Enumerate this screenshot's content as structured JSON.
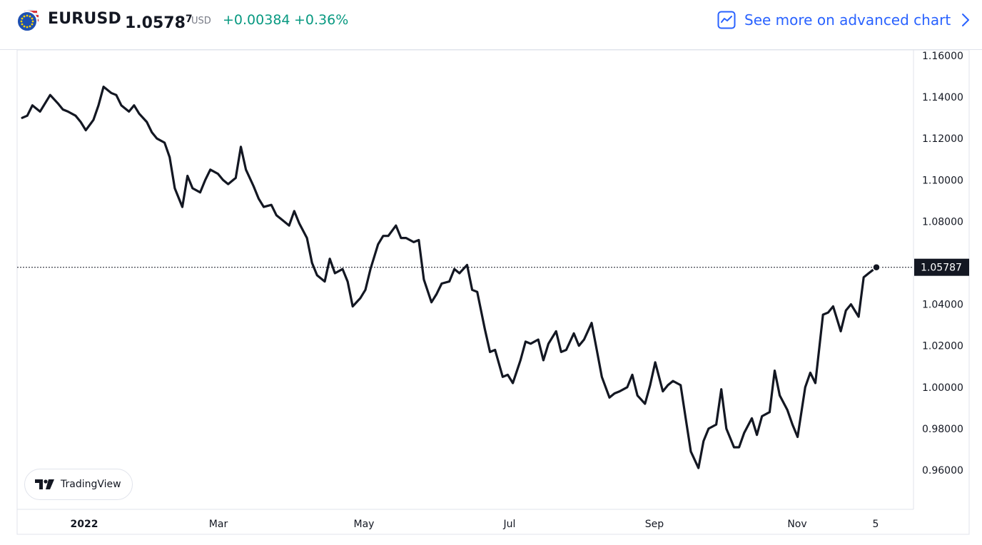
{
  "header": {
    "symbol": "EURUSD",
    "price_main": "1.0578",
    "price_sup": "7",
    "currency": "USD",
    "change": "+0.00384",
    "change_percent": "+0.36%",
    "advanced_chart_label": "See more on advanced chart",
    "change_color": "#089981",
    "link_color": "#2962ff"
  },
  "branding": {
    "label": "TradingView"
  },
  "chart_data": {
    "type": "line",
    "title": "",
    "xlabel": "",
    "ylabel": "",
    "ylim": [
      0.95,
      1.165
    ],
    "y_ticks": [
      0.96,
      0.98,
      1.0,
      1.02,
      1.04,
      1.06,
      1.08,
      1.1,
      1.12,
      1.14,
      1.16
    ],
    "y_tick_labels": [
      "0.96000",
      "0.98000",
      "1.00000",
      "1.02000",
      "1.04000",
      "1.06000",
      "1.08000",
      "1.10000",
      "1.12000",
      "1.14000",
      "1.16000"
    ],
    "x_range": [
      "2022-01-01",
      "2022-11-30"
    ],
    "x_ticks": [
      {
        "date": "2022-01-15",
        "label": "2022"
      },
      {
        "date": "2022-03-15",
        "label": "Mar"
      },
      {
        "date": "2022-05-15",
        "label": "May"
      },
      {
        "date": "2022-07-15",
        "label": "Jul"
      },
      {
        "date": "2022-09-15",
        "label": "Sep"
      },
      {
        "date": "2022-11-15",
        "label": "Nov"
      },
      {
        "date": "2022-12-05",
        "label": "5"
      }
    ],
    "last_value": 1.05787,
    "last_value_label": "1.05787",
    "line_color": "#131722",
    "grid": false,
    "series": [
      {
        "values": [
          {
            "x": "2022-01-03",
            "y": 1.13
          },
          {
            "x": "2022-01-05",
            "y": 1.131
          },
          {
            "x": "2022-01-07",
            "y": 1.136
          },
          {
            "x": "2022-01-10",
            "y": 1.133
          },
          {
            "x": "2022-01-12",
            "y": 1.137
          },
          {
            "x": "2022-01-14",
            "y": 1.141
          },
          {
            "x": "2022-01-17",
            "y": 1.137
          },
          {
            "x": "2022-01-19",
            "y": 1.134
          },
          {
            "x": "2022-01-21",
            "y": 1.133
          },
          {
            "x": "2022-01-24",
            "y": 1.131
          },
          {
            "x": "2022-01-26",
            "y": 1.128
          },
          {
            "x": "2022-01-28",
            "y": 1.124
          },
          {
            "x": "2022-01-31",
            "y": 1.129
          },
          {
            "x": "2022-02-02",
            "y": 1.136
          },
          {
            "x": "2022-02-04",
            "y": 1.145
          },
          {
            "x": "2022-02-07",
            "y": 1.142
          },
          {
            "x": "2022-02-09",
            "y": 1.141
          },
          {
            "x": "2022-02-11",
            "y": 1.136
          },
          {
            "x": "2022-02-14",
            "y": 1.133
          },
          {
            "x": "2022-02-16",
            "y": 1.136
          },
          {
            "x": "2022-02-18",
            "y": 1.132
          },
          {
            "x": "2022-02-21",
            "y": 1.128
          },
          {
            "x": "2022-02-23",
            "y": 1.123
          },
          {
            "x": "2022-02-25",
            "y": 1.12
          },
          {
            "x": "2022-02-28",
            "y": 1.118
          },
          {
            "x": "2022-03-02",
            "y": 1.111
          },
          {
            "x": "2022-03-04",
            "y": 1.096
          },
          {
            "x": "2022-03-07",
            "y": 1.087
          },
          {
            "x": "2022-03-09",
            "y": 1.102
          },
          {
            "x": "2022-03-11",
            "y": 1.096
          },
          {
            "x": "2022-03-14",
            "y": 1.094
          },
          {
            "x": "2022-03-16",
            "y": 1.1
          },
          {
            "x": "2022-03-18",
            "y": 1.105
          },
          {
            "x": "2022-03-21",
            "y": 1.103
          },
          {
            "x": "2022-03-23",
            "y": 1.1
          },
          {
            "x": "2022-03-25",
            "y": 1.098
          },
          {
            "x": "2022-03-28",
            "y": 1.101
          },
          {
            "x": "2022-03-30",
            "y": 1.116
          },
          {
            "x": "2022-04-01",
            "y": 1.105
          },
          {
            "x": "2022-04-04",
            "y": 1.097
          },
          {
            "x": "2022-04-06",
            "y": 1.091
          },
          {
            "x": "2022-04-08",
            "y": 1.087
          },
          {
            "x": "2022-04-11",
            "y": 1.088
          },
          {
            "x": "2022-04-13",
            "y": 1.083
          },
          {
            "x": "2022-04-15",
            "y": 1.081
          },
          {
            "x": "2022-04-18",
            "y": 1.078
          },
          {
            "x": "2022-04-20",
            "y": 1.085
          },
          {
            "x": "2022-04-22",
            "y": 1.079
          },
          {
            "x": "2022-04-25",
            "y": 1.072
          },
          {
            "x": "2022-04-27",
            "y": 1.06
          },
          {
            "x": "2022-04-29",
            "y": 1.054
          },
          {
            "x": "2022-05-02",
            "y": 1.051
          },
          {
            "x": "2022-05-04",
            "y": 1.062
          },
          {
            "x": "2022-05-06",
            "y": 1.055
          },
          {
            "x": "2022-05-09",
            "y": 1.057
          },
          {
            "x": "2022-05-11",
            "y": 1.051
          },
          {
            "x": "2022-05-13",
            "y": 1.039
          },
          {
            "x": "2022-05-16",
            "y": 1.043
          },
          {
            "x": "2022-05-18",
            "y": 1.047
          },
          {
            "x": "2022-05-20",
            "y": 1.057
          },
          {
            "x": "2022-05-23",
            "y": 1.069
          },
          {
            "x": "2022-05-25",
            "y": 1.073
          },
          {
            "x": "2022-05-27",
            "y": 1.073
          },
          {
            "x": "2022-05-30",
            "y": 1.078
          },
          {
            "x": "2022-06-01",
            "y": 1.072
          },
          {
            "x": "2022-06-03",
            "y": 1.072
          },
          {
            "x": "2022-06-06",
            "y": 1.07
          },
          {
            "x": "2022-06-08",
            "y": 1.071
          },
          {
            "x": "2022-06-10",
            "y": 1.052
          },
          {
            "x": "2022-06-13",
            "y": 1.041
          },
          {
            "x": "2022-06-15",
            "y": 1.045
          },
          {
            "x": "2022-06-17",
            "y": 1.05
          },
          {
            "x": "2022-06-20",
            "y": 1.051
          },
          {
            "x": "2022-06-22",
            "y": 1.057
          },
          {
            "x": "2022-06-24",
            "y": 1.055
          },
          {
            "x": "2022-06-27",
            "y": 1.059
          },
          {
            "x": "2022-06-29",
            "y": 1.047
          },
          {
            "x": "2022-07-01",
            "y": 1.046
          },
          {
            "x": "2022-07-04",
            "y": 1.028
          },
          {
            "x": "2022-07-06",
            "y": 1.017
          },
          {
            "x": "2022-07-08",
            "y": 1.018
          },
          {
            "x": "2022-07-11",
            "y": 1.005
          },
          {
            "x": "2022-07-13",
            "y": 1.006
          },
          {
            "x": "2022-07-15",
            "y": 1.002
          },
          {
            "x": "2022-07-18",
            "y": 1.013
          },
          {
            "x": "2022-07-20",
            "y": 1.022
          },
          {
            "x": "2022-07-22",
            "y": 1.021
          },
          {
            "x": "2022-07-25",
            "y": 1.023
          },
          {
            "x": "2022-07-27",
            "y": 1.013
          },
          {
            "x": "2022-07-29",
            "y": 1.021
          },
          {
            "x": "2022-08-01",
            "y": 1.027
          },
          {
            "x": "2022-08-03",
            "y": 1.017
          },
          {
            "x": "2022-08-05",
            "y": 1.018
          },
          {
            "x": "2022-08-08",
            "y": 1.026
          },
          {
            "x": "2022-08-10",
            "y": 1.02
          },
          {
            "x": "2022-08-12",
            "y": 1.023
          },
          {
            "x": "2022-08-15",
            "y": 1.031
          },
          {
            "x": "2022-08-17",
            "y": 1.018
          },
          {
            "x": "2022-08-19",
            "y": 1.005
          },
          {
            "x": "2022-08-22",
            "y": 0.995
          },
          {
            "x": "2022-08-24",
            "y": 0.997
          },
          {
            "x": "2022-08-26",
            "y": 0.998
          },
          {
            "x": "2022-08-29",
            "y": 1.0
          },
          {
            "x": "2022-08-31",
            "y": 1.006
          },
          {
            "x": "2022-09-02",
            "y": 0.996
          },
          {
            "x": "2022-09-05",
            "y": 0.992
          },
          {
            "x": "2022-09-07",
            "y": 1.001
          },
          {
            "x": "2022-09-09",
            "y": 1.012
          },
          {
            "x": "2022-09-12",
            "y": 0.998
          },
          {
            "x": "2022-09-14",
            "y": 1.001
          },
          {
            "x": "2022-09-16",
            "y": 1.003
          },
          {
            "x": "2022-09-19",
            "y": 1.001
          },
          {
            "x": "2022-09-21",
            "y": 0.985
          },
          {
            "x": "2022-09-23",
            "y": 0.969
          },
          {
            "x": "2022-09-26",
            "y": 0.961
          },
          {
            "x": "2022-09-28",
            "y": 0.974
          },
          {
            "x": "2022-09-30",
            "y": 0.98
          },
          {
            "x": "2022-10-03",
            "y": 0.982
          },
          {
            "x": "2022-10-05",
            "y": 0.999
          },
          {
            "x": "2022-10-07",
            "y": 0.98
          },
          {
            "x": "2022-10-10",
            "y": 0.971
          },
          {
            "x": "2022-10-12",
            "y": 0.971
          },
          {
            "x": "2022-10-14",
            "y": 0.978
          },
          {
            "x": "2022-10-17",
            "y": 0.985
          },
          {
            "x": "2022-10-19",
            "y": 0.977
          },
          {
            "x": "2022-10-21",
            "y": 0.986
          },
          {
            "x": "2022-10-24",
            "y": 0.988
          },
          {
            "x": "2022-10-26",
            "y": 1.008
          },
          {
            "x": "2022-10-28",
            "y": 0.996
          },
          {
            "x": "2022-10-31",
            "y": 0.989
          },
          {
            "x": "2022-11-02",
            "y": 0.982
          },
          {
            "x": "2022-11-04",
            "y": 0.976
          },
          {
            "x": "2022-11-07",
            "y": 1.0
          },
          {
            "x": "2022-11-09",
            "y": 1.007
          },
          {
            "x": "2022-11-11",
            "y": 1.002
          },
          {
            "x": "2022-11-14",
            "y": 1.035
          },
          {
            "x": "2022-11-16",
            "y": 1.036
          },
          {
            "x": "2022-11-18",
            "y": 1.039
          },
          {
            "x": "2022-11-21",
            "y": 1.027
          },
          {
            "x": "2022-11-23",
            "y": 1.037
          },
          {
            "x": "2022-11-25",
            "y": 1.04
          },
          {
            "x": "2022-11-28",
            "y": 1.034
          },
          {
            "x": "2022-11-30",
            "y": 1.053
          },
          {
            "x": "2022-12-02",
            "y": 1.055
          },
          {
            "x": "2022-12-05",
            "y": 1.05787
          }
        ]
      }
    ]
  }
}
